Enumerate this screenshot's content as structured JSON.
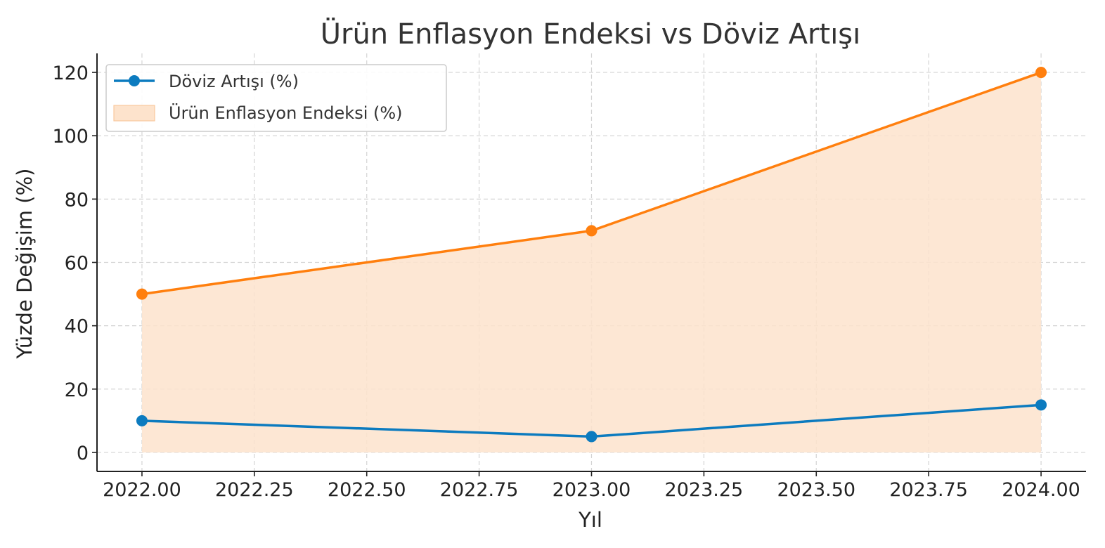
{
  "chart_data": {
    "type": "line",
    "title": "Ürün Enflasyon Endeksi vs Döviz Artışı",
    "xlabel": "Yıl",
    "ylabel": "Yüzde Değişim (%)",
    "x": [
      2022,
      2023,
      2024
    ],
    "xlim": [
      2021.9,
      2024.1
    ],
    "ylim": [
      -6,
      126
    ],
    "x_ticks": [
      2022.0,
      2022.25,
      2022.5,
      2022.75,
      2023.0,
      2023.25,
      2023.5,
      2023.75,
      2024.0
    ],
    "x_tick_labels": [
      "2022.00",
      "2022.25",
      "2022.50",
      "2022.75",
      "2023.00",
      "2023.25",
      "2023.50",
      "2023.75",
      "2024.00"
    ],
    "y_ticks": [
      0,
      20,
      40,
      60,
      80,
      100,
      120
    ],
    "y_tick_labels": [
      "0",
      "20",
      "40",
      "60",
      "80",
      "100",
      "120"
    ],
    "grid": true,
    "legend_position": "top-left",
    "series": [
      {
        "name": "Döviz Artışı (%)",
        "kind": "line",
        "values": [
          10,
          5,
          15
        ],
        "color": "#0C7BBF"
      },
      {
        "name": "Ürün Enflasyon Endeksi (%)",
        "kind": "area",
        "values": [
          50,
          70,
          120
        ],
        "color": "#FF7F0E",
        "fill": "#FDE3CC"
      }
    ]
  }
}
